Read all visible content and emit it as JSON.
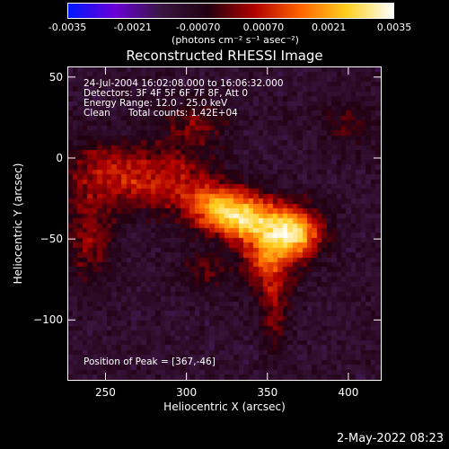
{
  "colorbar": {
    "ticks": [
      "-0.0035",
      "-0.0021",
      "-0.00070",
      "0.00070",
      "0.0021",
      "0.0035"
    ],
    "tick_values": [
      -0.0035,
      -0.0021,
      -0.0007,
      0.0007,
      0.0021,
      0.0035
    ],
    "range": [
      -0.0035,
      0.0035
    ],
    "unit_label": "(photons cm⁻² s⁻¹ asec⁻²)",
    "colors": [
      "#0018ff",
      "#6a00d8",
      "#3a1640",
      "#200010",
      "#b00000",
      "#ff6400",
      "#ffd020",
      "#ffffff"
    ]
  },
  "title": "Reconstructed RHESSI Image",
  "annotations": {
    "time": "24-Jul-2004 16:02:08.000 to 16:06:32.000",
    "detectors": "Detectors: 3F 4F 5F 6F 7F 8F, Att 0",
    "energy": "Energy Range: 12.0 - 25.0 keV",
    "clean": "Clean      Total counts: 1.42E+04",
    "peak": "Position of Peak = [367,-46]"
  },
  "axes": {
    "xlabel": "Heliocentric X (arcsec)",
    "ylabel": "Heliocentric Y (arcsec)",
    "xlim": [
      227,
      420
    ],
    "ylim": [
      -137,
      56
    ],
    "xticks": [
      250,
      300,
      350,
      400
    ],
    "xtick_labels": [
      "250",
      "300",
      "350",
      "400"
    ],
    "yticks": [
      50,
      0,
      -50,
      -100
    ],
    "ytick_labels": [
      "50",
      "0",
      "−50",
      "−100"
    ]
  },
  "footer": {
    "timestamp": "2-May-2022 08:23"
  },
  "chart_data": {
    "type": "heatmap",
    "title": "Reconstructed RHESSI Image",
    "xlabel": "Heliocentric X (arcsec)",
    "ylabel": "Heliocentric Y (arcsec)",
    "xlim": [
      227,
      420
    ],
    "ylim": [
      -137,
      56
    ],
    "value_range": [
      -0.0035,
      0.0035
    ],
    "peak": {
      "x": 367,
      "y": -46
    },
    "sources": [
      {
        "x": 367,
        "y": -46,
        "amp": 0.0035,
        "sx": 12,
        "sy": 11
      },
      {
        "x": 338,
        "y": -38,
        "amp": 0.0031,
        "sx": 14,
        "sy": 10
      },
      {
        "x": 318,
        "y": -30,
        "amp": 0.0024,
        "sx": 13,
        "sy": 10
      },
      {
        "x": 350,
        "y": -62,
        "amp": 0.002,
        "sx": 12,
        "sy": 14
      },
      {
        "x": 288,
        "y": -14,
        "amp": 0.0016,
        "sx": 20,
        "sy": 14
      },
      {
        "x": 250,
        "y": -10,
        "amp": 0.0015,
        "sx": 18,
        "sy": 14
      },
      {
        "x": 240,
        "y": -50,
        "amp": 0.0013,
        "sx": 10,
        "sy": 18
      },
      {
        "x": 305,
        "y": 20,
        "amp": 0.0011,
        "sx": 14,
        "sy": 10
      },
      {
        "x": 355,
        "y": -95,
        "amp": 0.0012,
        "sx": 6,
        "sy": 18
      },
      {
        "x": 400,
        "y": 20,
        "amp": 0.0008,
        "sx": 12,
        "sy": 10
      },
      {
        "x": 310,
        "y": -70,
        "amp": 0.0009,
        "sx": 10,
        "sy": 8
      }
    ]
  }
}
